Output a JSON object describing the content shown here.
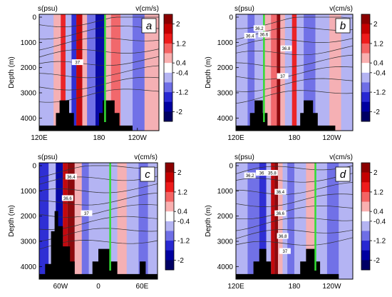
{
  "chart_data": {
    "type": "heatmap",
    "colorbar": {
      "ticks": [
        "2",
        "1.2",
        "0.4",
        "-0.4",
        "-1.2",
        "-2"
      ],
      "levels": [
        2.0,
        1.6,
        1.2,
        0.8,
        0.4,
        -0.4,
        -0.8,
        -1.2,
        -1.6,
        -2.0
      ],
      "colors": [
        "#8b0000",
        "#c40000",
        "#ee1c1c",
        "#f46464",
        "#f9b0b0",
        "#ffffff",
        "#b4b4f2",
        "#6e6ee6",
        "#2828d2",
        "#0000a0",
        "#000064"
      ]
    },
    "panels": [
      {
        "label": "a",
        "left_label": "s(psu)",
        "right_label": "v(cm/s)",
        "ylabel": "Depth (m)",
        "yticks": [
          "0",
          "1000",
          "2000",
          "3000",
          "4000"
        ],
        "xticks": [
          "120E",
          "180",
          "120W"
        ],
        "contour_labels": [
          "37"
        ],
        "green_line_x": 0.55
      },
      {
        "label": "b",
        "left_label": "s(psu)",
        "right_label": "v(cm/s)",
        "ylabel": "Depth (m)",
        "yticks": [
          "0",
          "1000",
          "2000",
          "3000",
          "4000"
        ],
        "xticks": [
          "120E",
          "180",
          "120W"
        ],
        "contour_labels": [
          "36.2",
          "36.4",
          "36.6",
          "36.8",
          "37"
        ],
        "green_line_x": 0.24
      },
      {
        "label": "c",
        "left_label": "s(psu)",
        "right_label": "v(cm/s)",
        "ylabel": "Depth (m)",
        "yticks": [
          "0",
          "1000",
          "2000",
          "3000",
          "4000"
        ],
        "xticks": [
          "60W",
          "0",
          "60E"
        ],
        "contour_labels": [
          "36.4",
          "36.6",
          "37"
        ],
        "green_line_x": 0.6
      },
      {
        "label": "d",
        "left_label": "s(psu)",
        "right_label": "v(cm/s)",
        "ylabel": "Depth (m)",
        "yticks": [
          "0",
          "1000",
          "2000",
          "3000",
          "4000"
        ],
        "xticks": [
          "120E",
          "180",
          "120W"
        ],
        "contour_labels": [
          "36.2",
          "36",
          "35.8",
          "36.4",
          "36.6",
          "36.8",
          "37"
        ],
        "green_line_x": 0.68
      }
    ]
  }
}
